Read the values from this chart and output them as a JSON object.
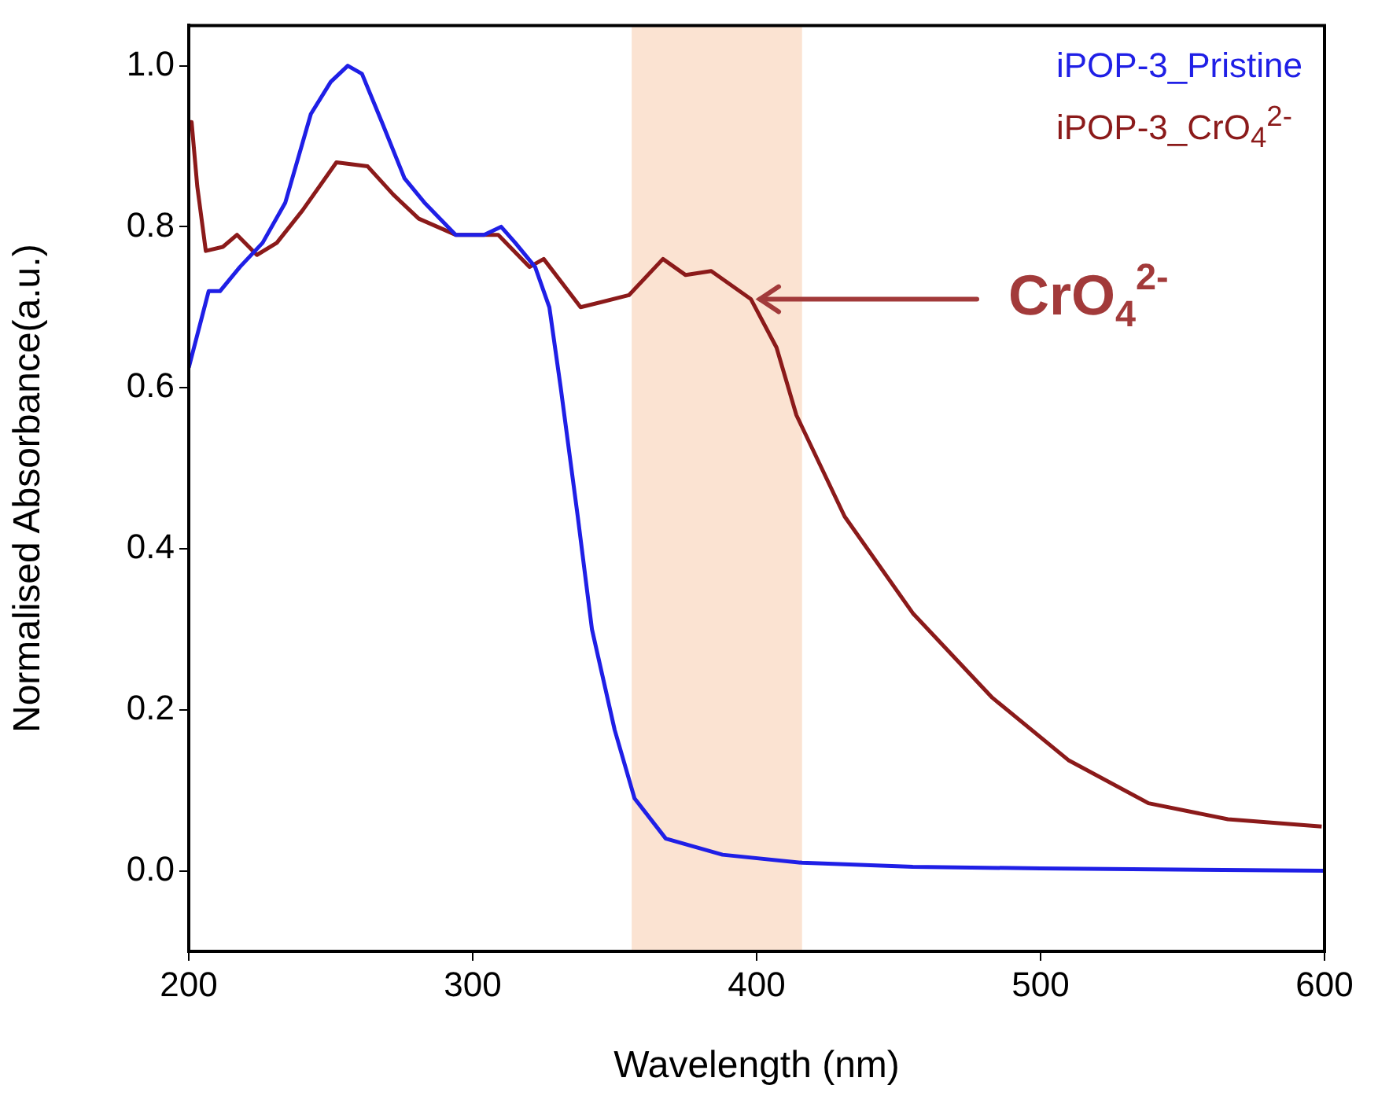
{
  "chart_data": {
    "type": "line",
    "xlabel": "Wavelength (nm)",
    "ylabel": "Normalised Absorbance(a.u.)",
    "xlim": [
      200,
      600
    ],
    "xticks": [
      200,
      300,
      400,
      500,
      600
    ],
    "ylim": [
      -0.1,
      1.05
    ],
    "yticks": [
      {
        "value": 0,
        "label": "0.0"
      },
      {
        "value": 0.2,
        "label": "0.2"
      },
      {
        "value": 0.4,
        "label": "0.4"
      },
      {
        "value": 0.6,
        "label": "0.6"
      },
      {
        "value": 0.8,
        "label": "0.8"
      },
      {
        "value": 1,
        "label": "1.0"
      }
    ],
    "grid": false,
    "legend": "top right",
    "marker": "none",
    "line_style": "solid",
    "series": [
      {
        "name": "iPOP-3_Pristine",
        "color": "#1f1fe6",
        "x": [
          200,
          207,
          211,
          218,
          226,
          234,
          243,
          250,
          256,
          261,
          268,
          276,
          283,
          294,
          304,
          310,
          315,
          322,
          327,
          331,
          337,
          342,
          350,
          357,
          368,
          388,
          416,
          455,
          500,
          600
        ],
        "values": [
          0.625,
          0.72,
          0.72,
          0.75,
          0.78,
          0.83,
          0.94,
          0.98,
          1.0,
          0.99,
          0.93,
          0.86,
          0.83,
          0.79,
          0.79,
          0.8,
          0.78,
          0.75,
          0.7,
          0.6,
          0.44,
          0.3,
          0.175,
          0.09,
          0.04,
          0.02,
          0.01,
          0.005,
          0.003,
          0.0
        ]
      },
      {
        "name": "iPOP-3_CrO$_{4}$$^{2-}$",
        "color": "#8b1a1a",
        "x": [
          200,
          201,
          203,
          206,
          212,
          217,
          224,
          231,
          240,
          252,
          263,
          272,
          281,
          294,
          309,
          320,
          325,
          338,
          355,
          367,
          375,
          384,
          398,
          407,
          414,
          431,
          455,
          483,
          510,
          538,
          566,
          599
        ],
        "values": [
          0.93,
          0.93,
          0.85,
          0.77,
          0.775,
          0.79,
          0.765,
          0.78,
          0.82,
          0.88,
          0.875,
          0.84,
          0.81,
          0.79,
          0.79,
          0.75,
          0.76,
          0.7,
          0.715,
          0.76,
          0.74,
          0.745,
          0.71,
          0.65,
          0.566,
          0.44,
          0.32,
          0.215,
          0.137,
          0.084,
          0.064,
          0.055
        ]
      }
    ],
    "bands": [
      {
        "axis": "x",
        "from": 356,
        "to": 416,
        "color": "#fbe3d2"
      }
    ],
    "annotations": [
      {
        "text": "CrO$_{4}$$^{2-}$",
        "x": 400,
        "y": 0.71
      }
    ]
  }
}
